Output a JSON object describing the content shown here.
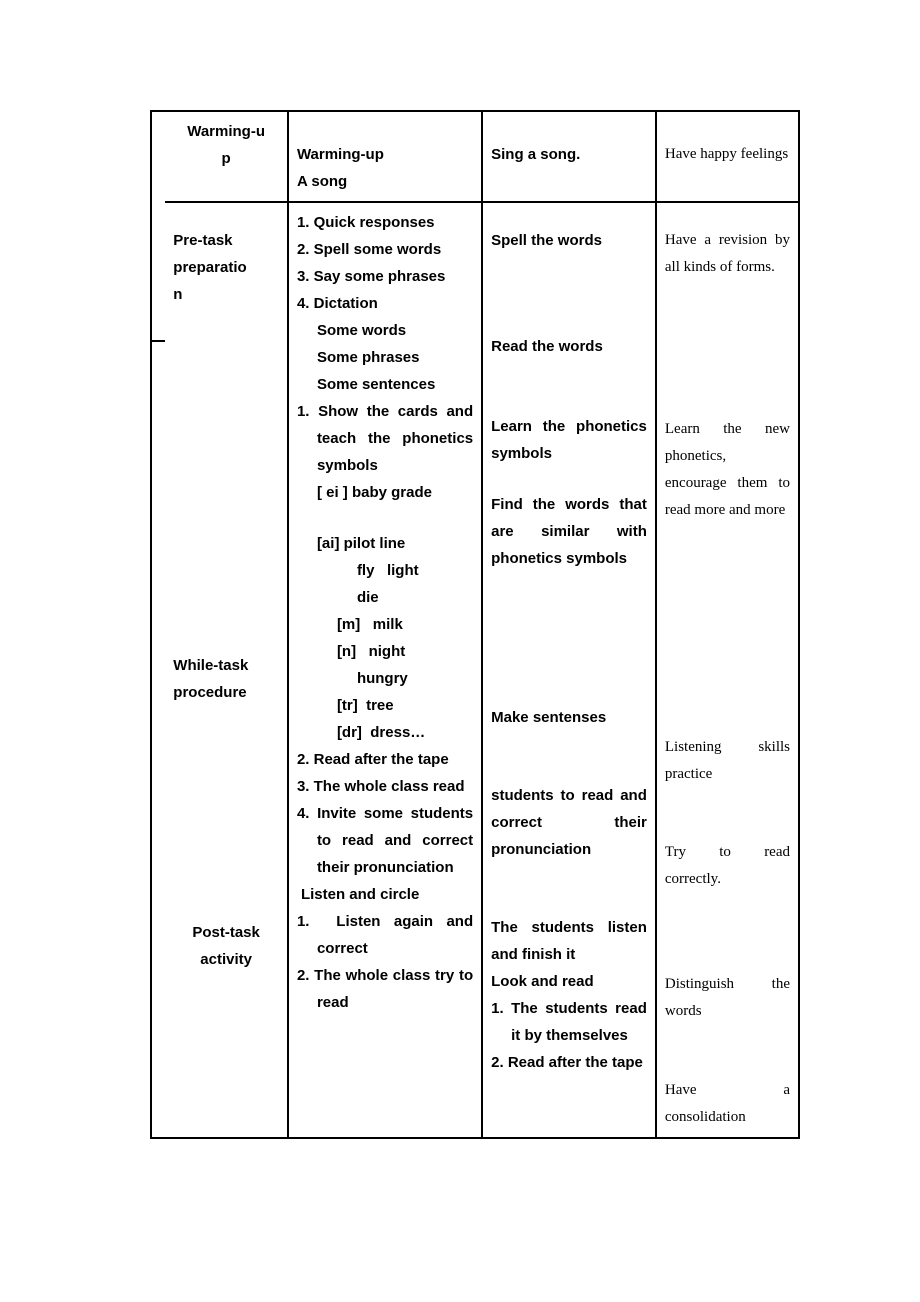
{
  "rows": {
    "warming": {
      "stage": "Warming-u\np",
      "teacher": "Warming-up\nA song",
      "student": "Sing a song.",
      "purpose": "Have happy feelings"
    },
    "pretask": {
      "stage": "Pre-task preparatio\nn",
      "teacher_items": [
        "Quick responses",
        "Spell some words",
        "Say some phrases",
        "Dictation"
      ],
      "teacher_extra": "Some words\nSome phrases\nSome sentences",
      "student_1": "Spell the words",
      "student_2": "Read the words",
      "purpose": "Have a revision by all kinds of forms."
    },
    "whiletask": {
      "stage": "While-task procedure",
      "teacher_1": "Show the cards and teach the phonetics symbols",
      "teacher_1b": "[ ei ] baby grade",
      "teacher_ph_lines": [
        "[ai] pilot line",
        "fly   light",
        "die",
        "[m]   milk",
        "[n]   night",
        "hungry",
        "[tr]  tree",
        "[dr]  dress…"
      ],
      "teacher_2": "Read after the tape",
      "teacher_3": "The whole class read",
      "teacher_4": "Invite some students to read and correct their pronunciation",
      "student_1": "Learn the phonetics symbols",
      "student_2": "Find the words that are similar with phonetics symbols",
      "student_3": "Make sentenses",
      "student_4": "students to read and correct their pronunciation",
      "purpose_1": "Learn the new phonetics, encourage them to read more and more",
      "purpose_2": "Listening skills practice",
      "purpose_3": "Try to read correctly."
    },
    "posttask": {
      "stage": "Post-task activity",
      "teacher_title": "Listen and circle",
      "teacher_1": "Listen again and correct",
      "teacher_2": "The whole class try to read",
      "student_1": "The students listen and finish it",
      "student_2": "Look and read",
      "student_3a": "The students read it by themselves",
      "student_3b": "Read after the tape",
      "purpose_1": "Distinguish the words",
      "purpose_2": "Have a consolidation"
    }
  }
}
